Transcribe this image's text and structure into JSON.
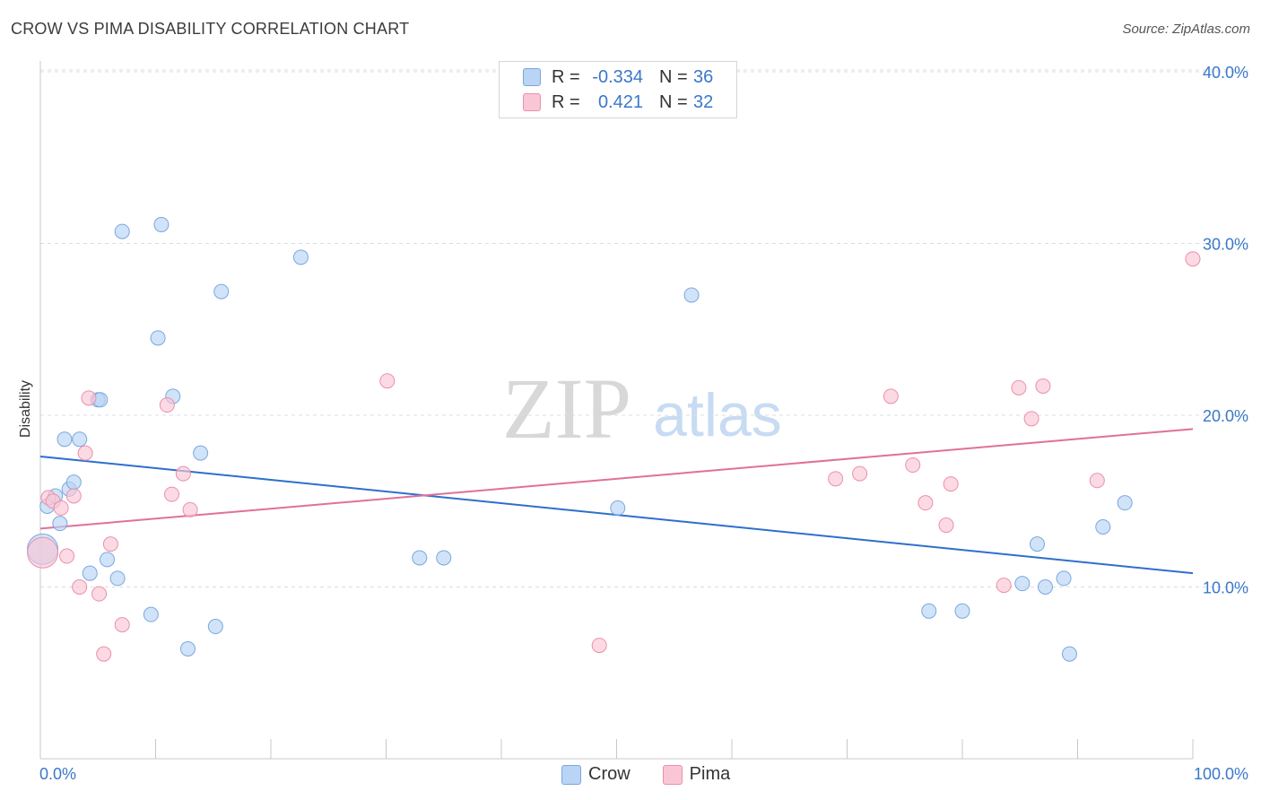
{
  "title": "CROW VS PIMA DISABILITY CORRELATION CHART",
  "source": "Source: ZipAtlas.com",
  "legend": {
    "rows": [
      {
        "r_label": "R =",
        "r_value": "-0.334",
        "n_label": "N =",
        "n_value": "36"
      },
      {
        "r_label": "R =",
        "r_value": "0.421",
        "n_label": "N =",
        "n_value": "32"
      }
    ]
  },
  "bottom_legend": {
    "crow": "Crow",
    "pima": "Pima"
  },
  "watermark": {
    "zip": "ZIP",
    "atlas": "atlas"
  },
  "colors": {
    "crow_fill": "#b9d4f4",
    "crow_stroke": "#7aa7e0",
    "crow_line": "#2d6fcc",
    "pima_fill": "#f9c6d5",
    "pima_stroke": "#ec8fab",
    "pima_line": "#e0709a",
    "tick_label": "#3a78c9",
    "grid": "#dcdcdc"
  },
  "chart_data": {
    "type": "scatter",
    "title": "CROW VS PIMA DISABILITY CORRELATION CHART",
    "xlabel": "",
    "ylabel": "Disability",
    "xlim": [
      0,
      100
    ],
    "ylim": [
      0,
      40
    ],
    "x_tick_labels": [
      {
        "value": 0,
        "label": "0.0%"
      },
      {
        "value": 100,
        "label": "100.0%"
      }
    ],
    "y_tick_labels": [
      {
        "value": 10,
        "label": "10.0%"
      },
      {
        "value": 20,
        "label": "20.0%"
      },
      {
        "value": 30,
        "label": "30.0%"
      },
      {
        "value": 40,
        "label": "40.0%"
      }
    ],
    "series": [
      {
        "name": "Crow",
        "r": -0.334,
        "n": 36,
        "trend": {
          "x": [
            0,
            100
          ],
          "y": [
            17.6,
            10.8
          ]
        },
        "points": [
          {
            "x": 0.2,
            "y": 12.2,
            "big": true
          },
          {
            "x": 0.6,
            "y": 14.7
          },
          {
            "x": 1.3,
            "y": 15.3
          },
          {
            "x": 1.7,
            "y": 13.7
          },
          {
            "x": 2.1,
            "y": 18.6
          },
          {
            "x": 2.5,
            "y": 15.7
          },
          {
            "x": 2.9,
            "y": 16.1
          },
          {
            "x": 3.4,
            "y": 18.6
          },
          {
            "x": 4.3,
            "y": 10.8
          },
          {
            "x": 5.0,
            "y": 20.9
          },
          {
            "x": 5.2,
            "y": 20.9
          },
          {
            "x": 5.8,
            "y": 11.6
          },
          {
            "x": 6.7,
            "y": 10.5
          },
          {
            "x": 7.1,
            "y": 30.7
          },
          {
            "x": 9.6,
            "y": 8.4
          },
          {
            "x": 10.2,
            "y": 24.5
          },
          {
            "x": 10.5,
            "y": 31.1
          },
          {
            "x": 11.5,
            "y": 21.1
          },
          {
            "x": 12.8,
            "y": 6.4
          },
          {
            "x": 13.9,
            "y": 17.8
          },
          {
            "x": 15.2,
            "y": 7.7
          },
          {
            "x": 15.7,
            "y": 27.2
          },
          {
            "x": 22.6,
            "y": 29.2
          },
          {
            "x": 32.9,
            "y": 11.7
          },
          {
            "x": 35.0,
            "y": 11.7
          },
          {
            "x": 50.1,
            "y": 14.6
          },
          {
            "x": 56.5,
            "y": 27.0
          },
          {
            "x": 89.3,
            "y": 6.1
          },
          {
            "x": 77.1,
            "y": 8.6
          },
          {
            "x": 80.0,
            "y": 8.6
          },
          {
            "x": 85.2,
            "y": 10.2
          },
          {
            "x": 86.5,
            "y": 12.5
          },
          {
            "x": 87.2,
            "y": 10.0
          },
          {
            "x": 88.8,
            "y": 10.5
          },
          {
            "x": 92.2,
            "y": 13.5
          },
          {
            "x": 94.1,
            "y": 14.9
          }
        ]
      },
      {
        "name": "Pima",
        "r": 0.421,
        "n": 32,
        "trend": {
          "x": [
            0,
            100
          ],
          "y": [
            13.4,
            19.2
          ]
        },
        "points": [
          {
            "x": 0.2,
            "y": 12.0,
            "big": true
          },
          {
            "x": 0.7,
            "y": 15.2
          },
          {
            "x": 1.1,
            "y": 15.0
          },
          {
            "x": 1.8,
            "y": 14.6
          },
          {
            "x": 2.3,
            "y": 11.8
          },
          {
            "x": 2.9,
            "y": 15.3
          },
          {
            "x": 3.4,
            "y": 10.0
          },
          {
            "x": 3.9,
            "y": 17.8
          },
          {
            "x": 4.2,
            "y": 21.0
          },
          {
            "x": 5.1,
            "y": 9.6
          },
          {
            "x": 6.1,
            "y": 12.5
          },
          {
            "x": 5.5,
            "y": 6.1
          },
          {
            "x": 7.1,
            "y": 7.8
          },
          {
            "x": 11.0,
            "y": 20.6
          },
          {
            "x": 11.4,
            "y": 15.4
          },
          {
            "x": 12.4,
            "y": 16.6
          },
          {
            "x": 13.0,
            "y": 14.5
          },
          {
            "x": 30.1,
            "y": 22.0
          },
          {
            "x": 48.5,
            "y": 6.6
          },
          {
            "x": 69.0,
            "y": 16.3
          },
          {
            "x": 71.1,
            "y": 16.6
          },
          {
            "x": 73.8,
            "y": 21.1
          },
          {
            "x": 75.7,
            "y": 17.1
          },
          {
            "x": 76.8,
            "y": 14.9
          },
          {
            "x": 79.0,
            "y": 16.0
          },
          {
            "x": 78.6,
            "y": 13.6
          },
          {
            "x": 83.6,
            "y": 10.1
          },
          {
            "x": 84.9,
            "y": 21.6
          },
          {
            "x": 86.0,
            "y": 19.8
          },
          {
            "x": 87.0,
            "y": 21.7
          },
          {
            "x": 91.7,
            "y": 16.2
          },
          {
            "x": 100.0,
            "y": 29.1
          }
        ]
      }
    ]
  }
}
